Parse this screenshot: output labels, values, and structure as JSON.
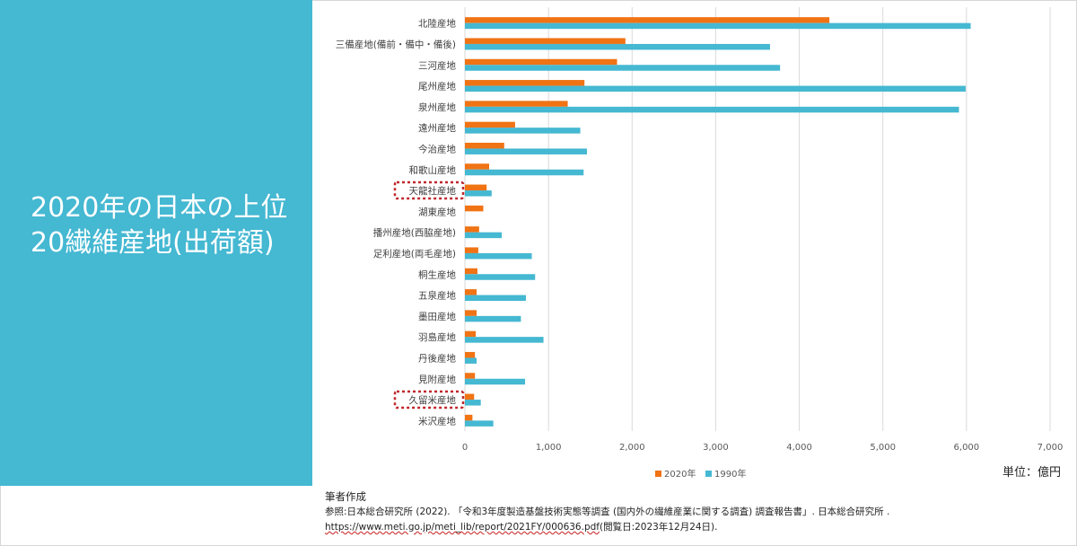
{
  "slide": {
    "title": "2020年の日本の上位20繊維産地(出荷額)",
    "unit_label": "単位：億円",
    "footer": {
      "line1": "筆者作成",
      "line2": "参照:日本総合研究所 (2022). 「令和3年度製造基盤技術実態等調査 (国内外の繊維産業に関する調査) 調査報告書」. 日本総合研究所 .",
      "line3_url": "https://www.meti.go.jp/meti_lib/report/2021FY/000636.pdf",
      "line3_rest": "(閲覧日:2023年12月24日)."
    }
  },
  "chart_data": {
    "type": "bar",
    "orientation": "horizontal",
    "categories": [
      "北陸産地",
      "三備産地(備前・備中・備後)",
      "三河産地",
      "尾州産地",
      "泉州産地",
      "遠州産地",
      "今治産地",
      "和歌山産地",
      "天龍社産地",
      "湖東産地",
      "播州産地(西脇産地)",
      "足利産地(両毛産地)",
      "桐生産地",
      "五泉産地",
      "墨田産地",
      "羽島産地",
      "丹後産地",
      "見附産地",
      "久留米産地",
      "米沢産地"
    ],
    "series": [
      {
        "name": "2020年",
        "color": "#f07314",
        "values": [
          4360,
          1920,
          1820,
          1430,
          1230,
          600,
          470,
          290,
          260,
          220,
          170,
          160,
          150,
          140,
          140,
          130,
          120,
          120,
          110,
          90
        ]
      },
      {
        "name": "1990年",
        "color": "#45b8d2",
        "values": [
          6050,
          3650,
          3770,
          5990,
          5910,
          1380,
          1460,
          1420,
          320,
          null,
          440,
          800,
          840,
          730,
          670,
          940,
          140,
          720,
          190,
          340
        ]
      }
    ],
    "xlim": [
      0,
      7000
    ],
    "xticks": [
      "0",
      "1,000",
      "2,000",
      "3,000",
      "4,000",
      "5,000",
      "6,000",
      "7,000"
    ],
    "highlighted": [
      "天龍社産地",
      "久留米産地"
    ],
    "highlight_color": "#c0282d",
    "grid": true,
    "legend_position": "bottom"
  }
}
